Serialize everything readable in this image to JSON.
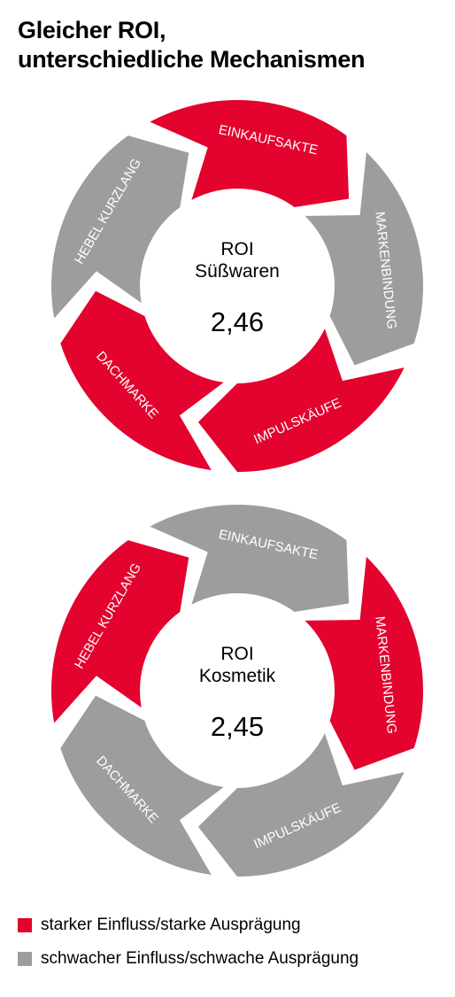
{
  "title": {
    "line1": "Gleicher ROI,",
    "line2": "unterschiedliche Mechanismen"
  },
  "colors": {
    "strong": "#e3032e",
    "weak": "#9d9d9c",
    "text_on_segment": "#ffffff"
  },
  "diagrams": [
    {
      "center": {
        "roi_label": "ROI",
        "category": "Süßwaren",
        "value": "2,46"
      },
      "segments": [
        {
          "label": "EINKAUFSAKTE",
          "influence": "strong"
        },
        {
          "label": "MARKENBINDUNG",
          "influence": "weak"
        },
        {
          "label": "IMPULSKÄUFE",
          "influence": "strong"
        },
        {
          "label": "DACHMARKE",
          "influence": "strong"
        },
        {
          "label": "HEBEL KURZLANG",
          "influence": "weak"
        }
      ]
    },
    {
      "center": {
        "roi_label": "ROI",
        "category": "Kosmetik",
        "value": "2,45"
      },
      "segments": [
        {
          "label": "EINKAUFSAKTE",
          "influence": "weak"
        },
        {
          "label": "MARKENBINDUNG",
          "influence": "strong"
        },
        {
          "label": "IMPULSKÄUFE",
          "influence": "weak"
        },
        {
          "label": "DACHMARKE",
          "influence": "weak"
        },
        {
          "label": "HEBEL KURZLANG",
          "influence": "strong"
        }
      ]
    }
  ],
  "legend": [
    {
      "label": "starker Einfluss/starke Ausprägung",
      "influence": "strong"
    },
    {
      "label": "schwacher Einfluss/schwache Ausprägung",
      "influence": "weak"
    }
  ]
}
